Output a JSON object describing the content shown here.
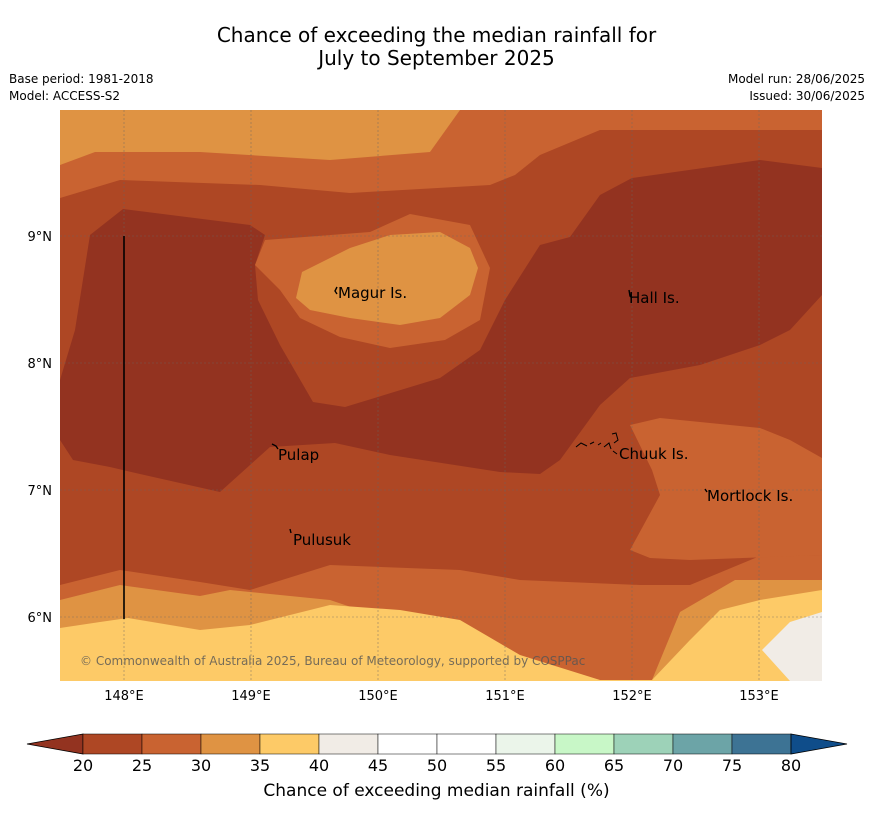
{
  "header": {
    "title_line1": "Chance of exceeding the median rainfall for",
    "title_line2": "July to September 2025",
    "base_period": "Base period: 1981-2018",
    "model": "Model: ACCESS-S2",
    "model_run": "Model run: 28/06/2025",
    "issued": "Issued: 30/06/2025"
  },
  "map": {
    "lon_labels": [
      "148°E",
      "149°E",
      "150°E",
      "151°E",
      "152°E",
      "153°E"
    ],
    "lat_labels": [
      "9°N",
      "8°N",
      "7°N",
      "6°N"
    ],
    "places": [
      {
        "name": "Magur Is."
      },
      {
        "name": "Hall Is."
      },
      {
        "name": "Pulap"
      },
      {
        "name": "Chuuk Is."
      },
      {
        "name": "Mortlock Is."
      },
      {
        "name": "Pulusuk"
      }
    ],
    "copyright": "© Commonwealth of Australia 2025, Bureau of Meteorology, supported by COSPPac"
  },
  "colorbar": {
    "title": "Chance of exceeding median rainfall (%)",
    "ticks": [
      "20",
      "25",
      "30",
      "35",
      "40",
      "45",
      "50",
      "55",
      "60",
      "65",
      "70",
      "75",
      "80"
    ],
    "colors": [
      "#933320",
      "#ae4724",
      "#c96331",
      "#df9343",
      "#fdca67",
      "#f1ece6",
      "#ffffff",
      "#ffffff",
      "#ebf5ea",
      "#c8f7c7",
      "#9dd2b8",
      "#6ca4a7",
      "#3d7394",
      "#0f4d8a"
    ]
  }
}
